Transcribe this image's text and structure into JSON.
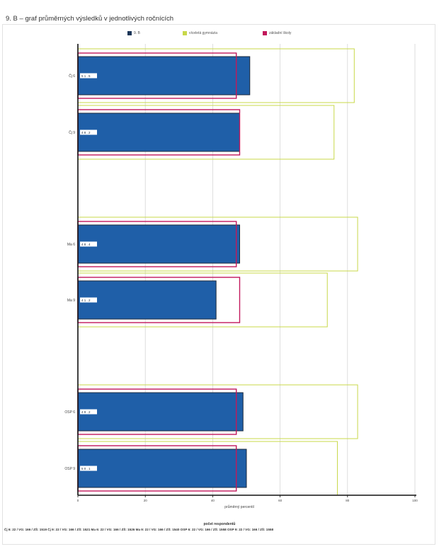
{
  "header": {
    "title": "9. B – graf průměrných výsledků v jednotlivých ročnících"
  },
  "footer": {
    "respondents_title": "počet respondentů",
    "respondents_text": "Čj 6: 22 / VG: 166 / ZŠ: 1519 Čj 9: 22 / VG: 166 / ZŠ: 1521 Ma 6: 22 / VG: 166 / ZŠ: 1526 Ma 9: 22 / VG: 166 / ZŠ: 1540 OSP 6: 22 / VG: 166 / ZŠ: 1558 OSP 9: 22 / VG: 166 / ZŠ: 1558"
  },
  "chart_data": {
    "type": "bar",
    "orientation": "horizontal",
    "categories": [
      "Čj 6",
      "Čj 9",
      "Ma 6",
      "Ma 9",
      "OSP 6",
      "OSP 9"
    ],
    "series": [
      {
        "name": "9. B",
        "style": "filled",
        "color": "#1f5fa8",
        "values": [
          51,
          48,
          48,
          41,
          49,
          50
        ]
      },
      {
        "name": "víceletá gymnázia",
        "style": "outline",
        "color": "#c8d84a",
        "values": [
          82,
          76,
          83,
          74,
          83,
          77
        ]
      },
      {
        "name": "základní školy",
        "style": "outline",
        "color": "#c2185b",
        "values": [
          47,
          48,
          47,
          48,
          47,
          47
        ]
      }
    ],
    "value_labels": [
      "5 1 . 5",
      "4 8 . 2",
      "4 8 . 4",
      "4 1 . 2",
      "4 9 . 2",
      "5 0 . 1"
    ],
    "xlabel": "průměrný percentil",
    "x_ticks": [
      "0",
      "20",
      "40",
      "60",
      "80",
      "100"
    ],
    "xlim": [
      0,
      100
    ],
    "grid": true,
    "legend_position": "top"
  }
}
